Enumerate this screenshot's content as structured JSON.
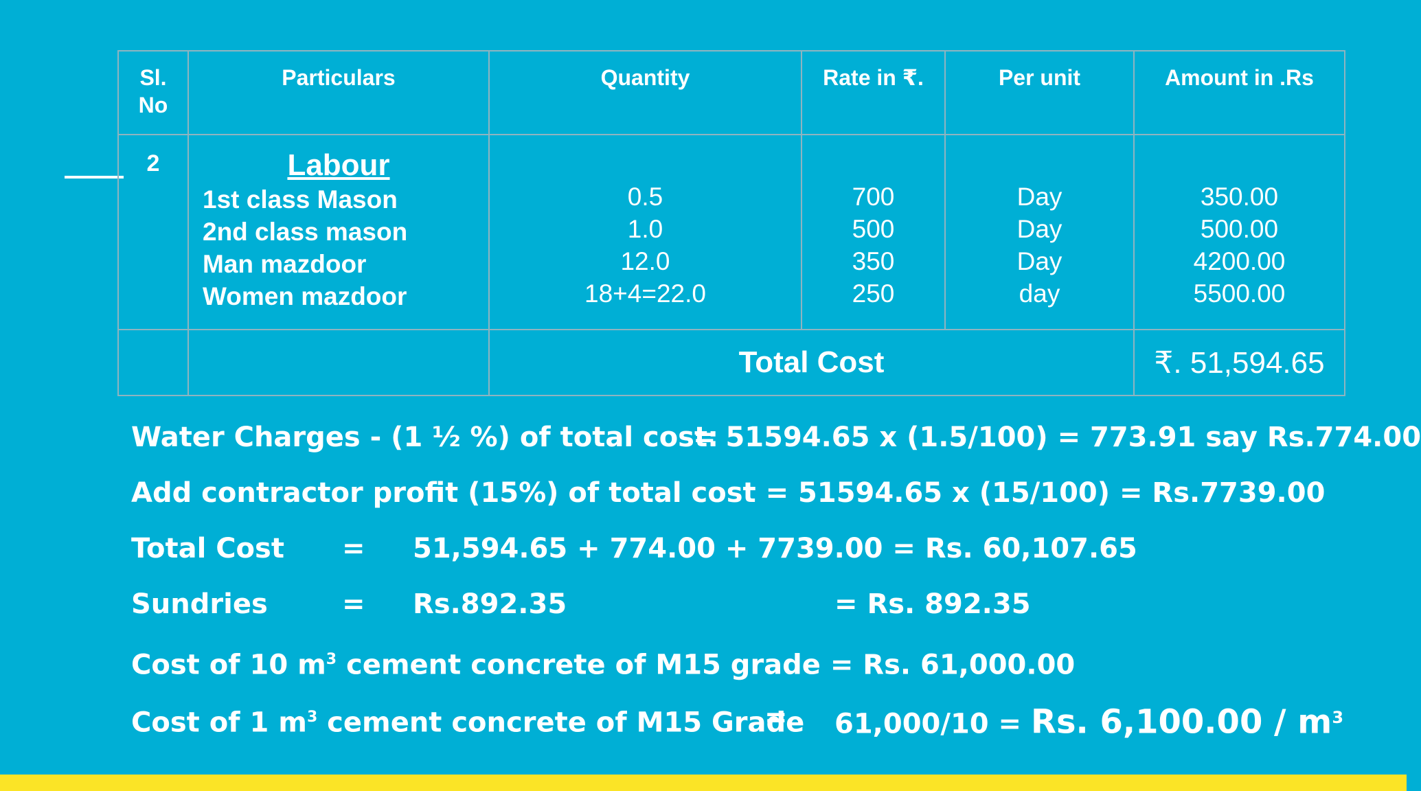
{
  "table": {
    "headers": [
      "Sl. No",
      "Particulars",
      "Quantity",
      "Rate in ₹.",
      "Per unit",
      "Amount in .Rs"
    ],
    "row": {
      "sl_no": "2",
      "heading": "Labour",
      "items": [
        {
          "particular": "1st class Mason",
          "quantity": "0.5",
          "rate": "700",
          "unit": "Day",
          "amount": "350.00"
        },
        {
          "particular": "2nd class mason",
          "quantity": "1.0",
          "rate": "500",
          "unit": "Day",
          "amount": "500.00"
        },
        {
          "particular": "Man mazdoor",
          "quantity": "12.0",
          "rate": "350",
          "unit": "Day",
          "amount": "4200.00"
        },
        {
          "particular": "Women mazdoor",
          "quantity": "18+4=22.0",
          "rate": "250",
          "unit": "day",
          "amount": "5500.00"
        }
      ]
    },
    "total_label": "Total Cost",
    "total_value": "₹. 51,594.65"
  },
  "calculations": {
    "water_charges": {
      "label": "Water Charges - (1 ½ %) of total cost:",
      "value": "= 51594.65 x (1.5/100) = 773.91 say Rs.774.00"
    },
    "contractor_profit": "Add contractor profit (15%) of total cost = 51594.65 x (15/100) = Rs.7739.00",
    "total_cost": {
      "label": "Total Cost",
      "eq": "=",
      "value": "51,594.65 + 774.00 + 7739.00 = Rs. 60,107.65"
    },
    "sundries": {
      "label": "Sundries",
      "eq": "=",
      "value": "Rs.892.35",
      "result": "= Rs. 892.35"
    },
    "cost_10m3": {
      "pre": "Cost of 10 m",
      "sup": "3",
      "post": " cement concrete of M15 grade = Rs. 61,000.00"
    },
    "cost_1m3": {
      "pre": "Cost of 1 m",
      "sup": "3",
      "post": " cement concrete of M15 Grade",
      "eq": "=",
      "value_a": "61,000/10 = ",
      "value_b": "Rs. 6,100.00 / m",
      "value_sup": "3"
    }
  },
  "colors": {
    "background": "#00afd5",
    "accent_bar": "#fbe426",
    "text": "#ffffff"
  }
}
